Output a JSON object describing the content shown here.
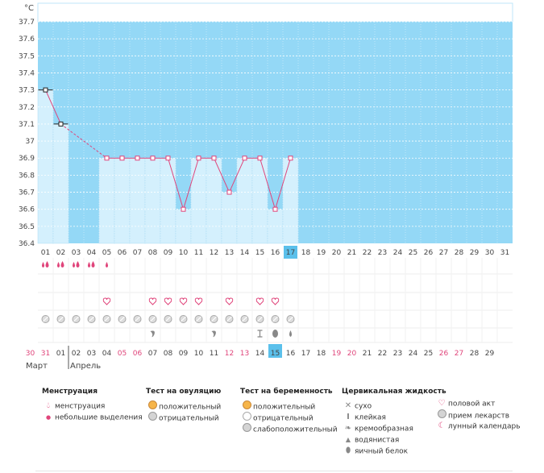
{
  "chart_data": {
    "type": "line",
    "yunit": "°C",
    "ylim": [
      36.4,
      37.7
    ],
    "yticks": [
      "37.7",
      "37.6",
      "37.5",
      "37.4",
      "37.3",
      "37.2",
      "37.1",
      "37",
      "36.9",
      "36.8",
      "36.7",
      "36.6",
      "36.5",
      "36.4"
    ],
    "cycle_days": [
      "01",
      "02",
      "03",
      "04",
      "05",
      "06",
      "07",
      "08",
      "09",
      "10",
      "11",
      "12",
      "13",
      "14",
      "15",
      "16",
      "17",
      "18",
      "19",
      "20",
      "21",
      "22",
      "23",
      "24",
      "25",
      "26",
      "27",
      "28",
      "29",
      "30",
      "31"
    ],
    "current_day_index": 16,
    "temperature": [
      37.3,
      37.1,
      null,
      null,
      36.9,
      36.9,
      36.9,
      36.9,
      36.9,
      36.6,
      36.9,
      36.9,
      36.7,
      36.9,
      36.9,
      36.6,
      36.9
    ],
    "menstruation": [
      "menstruation",
      "menstruation",
      "menstruation",
      "menstruation",
      "light",
      "none",
      "none",
      "none",
      "none",
      "none",
      "none",
      "none",
      "none",
      "none",
      "none",
      "none",
      "none"
    ],
    "intercourse": [
      4,
      7,
      8,
      9,
      10,
      12,
      14,
      15
    ],
    "pill_days": 17,
    "fluid_marks": [
      {
        "day_index": 7,
        "kind": "creamy"
      },
      {
        "day_index": 11,
        "kind": "creamy"
      },
      {
        "day_index": 14,
        "kind": "sticky"
      },
      {
        "day_index": 15,
        "kind": "egg-white"
      },
      {
        "day_index": 16,
        "kind": "watery"
      }
    ],
    "dates": [
      "30",
      "31",
      "01",
      "02",
      "03",
      "04",
      "05",
      "06",
      "07",
      "08",
      "09",
      "10",
      "11",
      "12",
      "13",
      "14",
      "15",
      "16",
      "17",
      "18",
      "19",
      "20",
      "21",
      "22",
      "23",
      "24",
      "25",
      "26",
      "27",
      "28",
      "29"
    ],
    "date_red": [
      0,
      1,
      6,
      7,
      13,
      14,
      20,
      21,
      27,
      28
    ],
    "months": [
      {
        "label": "Март",
        "index": 0
      },
      {
        "label": "Апрель",
        "index": 2
      }
    ]
  },
  "legend": {
    "menstruation": {
      "title": "Менструация",
      "items": [
        "менструация",
        "небольшие выделения"
      ]
    },
    "ovulation": {
      "title": "Тест на овуляцию",
      "items": [
        "положительный",
        "отрицательный"
      ]
    },
    "pregnancy": {
      "title": "Тест на беременность",
      "items": [
        "положительный",
        "отрицательный",
        "слабоположительный"
      ]
    },
    "fluid": {
      "title": "Цервикальная жидкость",
      "items": [
        "сухо",
        "клейкая",
        "кремообразная",
        "водянистая",
        "яичный белок"
      ]
    },
    "other": {
      "items": [
        "половой акт",
        "прием лекарств",
        "лунный календарь"
      ]
    }
  },
  "colors": {
    "plot_bg": "#94d8f6",
    "bar": "#d4f0fd",
    "line": "#e0457b",
    "highlight": "#5bc0eb",
    "accent": "#e0457b"
  },
  "icons": {
    "drop": "drop-icon",
    "heart": "heart-icon",
    "pill": "pill-icon"
  }
}
